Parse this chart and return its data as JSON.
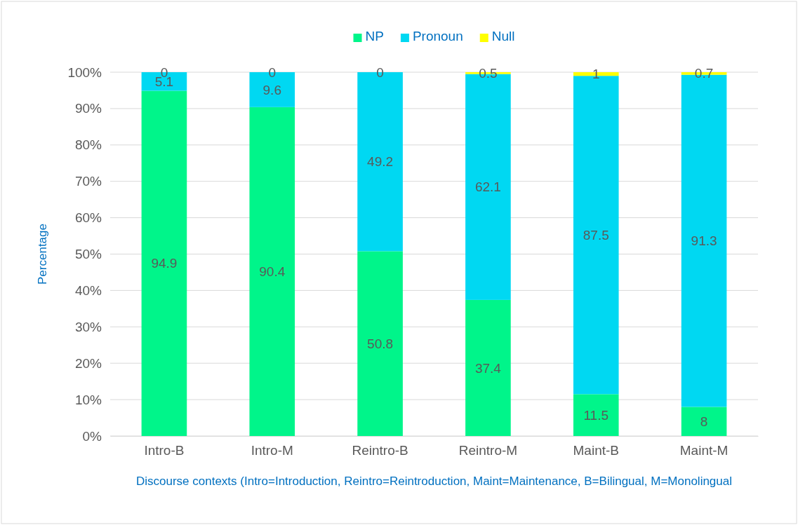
{
  "chart_data": {
    "type": "bar",
    "stacked": true,
    "categories": [
      "Intro-B",
      "Intro-M",
      "Reintro-B",
      "Reintro-M",
      "Maint-B",
      "Maint-M"
    ],
    "series": [
      {
        "name": "NP",
        "color": "#00f58a",
        "values": [
          94.9,
          90.4,
          50.8,
          37.4,
          11.5,
          8
        ]
      },
      {
        "name": "Pronoun",
        "color": "#00d8f2",
        "values": [
          5.1,
          9.6,
          49.2,
          62.1,
          87.5,
          91.3
        ]
      },
      {
        "name": "Null",
        "color": "#ffff00",
        "values": [
          0,
          0,
          0,
          0.5,
          1,
          0.7
        ]
      }
    ],
    "ylim": [
      0,
      100
    ],
    "yticks": [
      {
        "value": 0,
        "label": "0%"
      },
      {
        "value": 10,
        "label": "10%"
      },
      {
        "value": 20,
        "label": "20%"
      },
      {
        "value": 30,
        "label": "30%"
      },
      {
        "value": 40,
        "label": "40%"
      },
      {
        "value": 50,
        "label": "50%"
      },
      {
        "value": 60,
        "label": "60%"
      },
      {
        "value": 70,
        "label": "70%"
      },
      {
        "value": 80,
        "label": "80%"
      },
      {
        "value": 90,
        "label": "90%"
      },
      {
        "value": 100,
        "label": "100%"
      }
    ],
    "grid": "y",
    "legend": "top",
    "data_labels": true,
    "ylabel": "Percentage",
    "xlabel": "Discourse contexts (Intro=Introduction, Reintro=Reintroduction, Maint=Maintenance, B=Bilingual, M=Monolingual"
  }
}
